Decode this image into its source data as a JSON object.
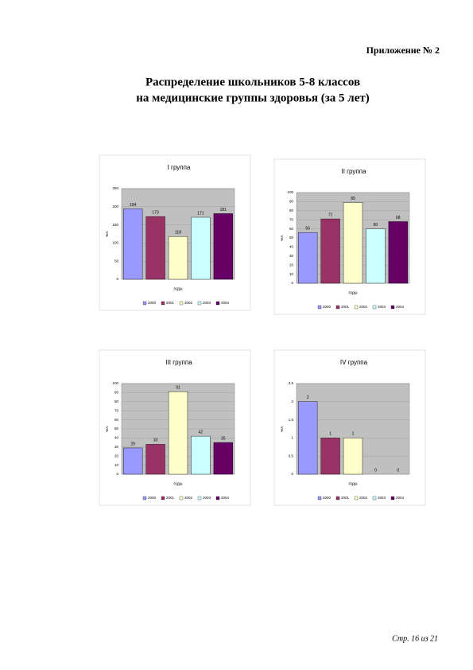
{
  "document": {
    "header": "Приложение № 2",
    "title_line1": "Распределение школьников 5-8 классов",
    "title_line2": "на медицинские группы здоровья (за 5 лет)",
    "footer": "Стр. 16 из 21"
  },
  "chart_data": [
    {
      "type": "bar",
      "title": "I группа",
      "x_label": "годы",
      "y_label": "чел.",
      "categories": [
        "2000",
        "2001",
        "2002",
        "2003",
        "2004"
      ],
      "values": [
        194,
        173,
        118,
        171,
        181
      ],
      "colors": [
        "#9999ff",
        "#993366",
        "#ffffcc",
        "#ccffff",
        "#660066"
      ],
      "ylim": [
        0,
        250
      ],
      "yticks": [
        0,
        50,
        100,
        150,
        200,
        250
      ],
      "grid": true
    },
    {
      "type": "bar",
      "title": "II группа",
      "x_label": "годы",
      "y_label": "чел.",
      "categories": [
        "2000",
        "2001",
        "2002",
        "2003",
        "2004"
      ],
      "values": [
        56,
        71,
        89,
        60,
        68
      ],
      "colors": [
        "#9999ff",
        "#993366",
        "#ffffcc",
        "#ccffff",
        "#660066"
      ],
      "ylim": [
        0,
        100
      ],
      "yticks": [
        0,
        10,
        20,
        30,
        40,
        50,
        60,
        70,
        80,
        90,
        100
      ],
      "grid": true
    },
    {
      "type": "bar",
      "title": "III группа",
      "x_label": "годы",
      "y_label": "чел.",
      "categories": [
        "2000",
        "2001",
        "2002",
        "2003",
        "2004"
      ],
      "values": [
        29,
        33,
        91,
        42,
        35
      ],
      "colors": [
        "#9999ff",
        "#993366",
        "#ffffcc",
        "#ccffff",
        "#660066"
      ],
      "ylim": [
        0,
        100
      ],
      "yticks": [
        0,
        10,
        20,
        30,
        40,
        50,
        60,
        70,
        80,
        90,
        100
      ],
      "grid": true
    },
    {
      "type": "bar",
      "title": "IV группа",
      "x_label": "годы",
      "y_label": "чел.",
      "categories": [
        "2000",
        "2001",
        "2002",
        "2003",
        "2004"
      ],
      "values": [
        2,
        1,
        1,
        0,
        0
      ],
      "colors": [
        "#9999ff",
        "#993366",
        "#ffffcc",
        "#ccffff",
        "#660066"
      ],
      "ylim": [
        0,
        2.5
      ],
      "yticks": [
        0,
        {
          "value": 0.5,
          "label": "0,5"
        },
        1,
        {
          "value": 1.5,
          "label": "1,5"
        },
        2,
        {
          "value": 2.5,
          "label": "2,5"
        }
      ],
      "grid": true
    }
  ]
}
